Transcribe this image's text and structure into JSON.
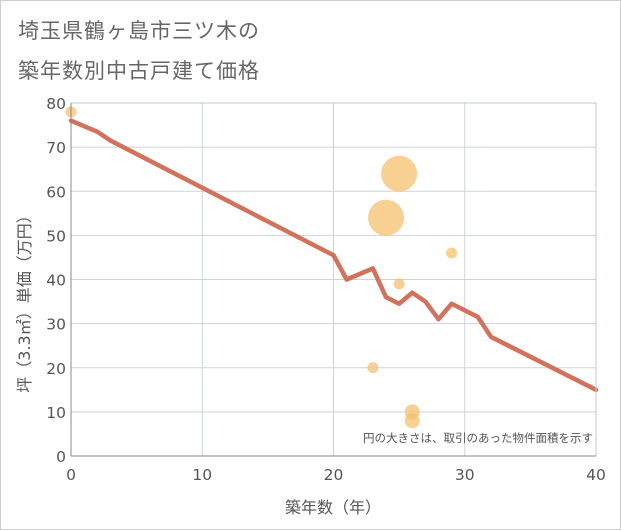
{
  "page": {
    "title_line1": "埼玉県鶴ヶ島市三ツ木の",
    "title_line2": "築年数別中古戸建て価格"
  },
  "chart_data": {
    "type": "scatter",
    "title": "埼玉県鶴ヶ島市三ツ木の築年数別中古戸建て価格",
    "xlabel": "築年数（年）",
    "ylabel": "坪（3.3㎡）単価（万円）",
    "xlim": [
      0,
      40
    ],
    "ylim": [
      0,
      80
    ],
    "xticks": [
      0,
      10,
      20,
      30,
      40
    ],
    "yticks": [
      0,
      10,
      20,
      30,
      40,
      50,
      60,
      70,
      80
    ],
    "grid": true,
    "note": "円の大きさは、取引のあった物件面積を示す",
    "colors": {
      "points": "#f5c06e",
      "trend": "#d4715a",
      "grid": "#c9d3dd",
      "plot_border": "#c0c9d2"
    },
    "points": [
      {
        "x": 0,
        "y": 78,
        "size": 1
      },
      {
        "x": 23,
        "y": 20,
        "size": 1
      },
      {
        "x": 24,
        "y": 54,
        "size": 4
      },
      {
        "x": 25,
        "y": 64,
        "size": 4
      },
      {
        "x": 25,
        "y": 39,
        "size": 1
      },
      {
        "x": 26,
        "y": 10,
        "size": 2
      },
      {
        "x": 26,
        "y": 8,
        "size": 2
      },
      {
        "x": 29,
        "y": 46,
        "size": 1
      }
    ],
    "trend": {
      "x": [
        0,
        2,
        3,
        20,
        21,
        23,
        24,
        25,
        26,
        27,
        28,
        29,
        31,
        32,
        40
      ],
      "y": [
        76,
        73.5,
        71.5,
        45.5,
        40,
        42.5,
        36,
        34.5,
        37,
        35,
        31,
        34.5,
        31.5,
        27,
        15
      ]
    }
  }
}
